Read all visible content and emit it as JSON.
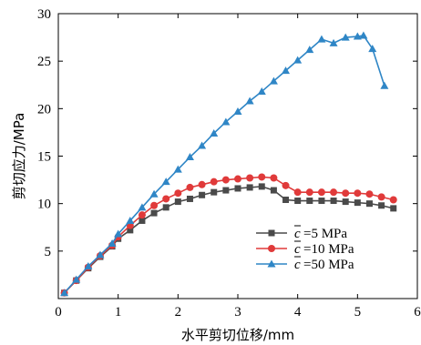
{
  "chart_data": {
    "type": "line",
    "xlabel": "水平剪切位移/mm",
    "ylabel": "剪切应力/MPa",
    "xlim": [
      0,
      6
    ],
    "ylim": [
      0,
      30
    ],
    "xticks": [
      0,
      1,
      2,
      3,
      4,
      5,
      6
    ],
    "yticks": [
      5,
      10,
      15,
      20,
      25,
      30
    ],
    "grid": false,
    "legend": "lower-right",
    "series": [
      {
        "name": "=5 MPa",
        "symbol": "c",
        "color": "#4a4a4a",
        "marker": "square",
        "x": [
          0.1,
          0.3,
          0.5,
          0.7,
          0.9,
          1.0,
          1.2,
          1.4,
          1.6,
          1.8,
          2.0,
          2.2,
          2.4,
          2.6,
          2.8,
          3.0,
          3.2,
          3.4,
          3.6,
          3.8,
          4.0,
          4.2,
          4.4,
          4.6,
          4.8,
          5.0,
          5.2,
          5.4,
          5.6
        ],
        "y": [
          0.6,
          1.9,
          3.2,
          4.4,
          5.5,
          6.3,
          7.2,
          8.2,
          9.0,
          9.6,
          10.2,
          10.5,
          10.9,
          11.2,
          11.4,
          11.6,
          11.7,
          11.8,
          11.4,
          10.4,
          10.3,
          10.3,
          10.3,
          10.3,
          10.2,
          10.1,
          10.0,
          9.8,
          9.5
        ]
      },
      {
        "name": "=10 MPa",
        "symbol": "c",
        "color": "#e03a3a",
        "marker": "circle",
        "x": [
          0.1,
          0.3,
          0.5,
          0.7,
          0.9,
          1.0,
          1.2,
          1.4,
          1.6,
          1.8,
          2.0,
          2.2,
          2.4,
          2.6,
          2.8,
          3.0,
          3.2,
          3.4,
          3.6,
          3.8,
          4.0,
          4.2,
          4.4,
          4.6,
          4.8,
          5.0,
          5.2,
          5.4,
          5.6
        ],
        "y": [
          0.6,
          1.9,
          3.3,
          4.5,
          5.6,
          6.5,
          7.7,
          8.8,
          9.8,
          10.5,
          11.1,
          11.7,
          12.0,
          12.3,
          12.5,
          12.6,
          12.7,
          12.8,
          12.7,
          11.9,
          11.2,
          11.2,
          11.2,
          11.2,
          11.1,
          11.1,
          11.0,
          10.7,
          10.4
        ]
      },
      {
        "name": "=50 MPa",
        "symbol": "c",
        "color": "#2f86c6",
        "marker": "triangle",
        "x": [
          0.1,
          0.3,
          0.5,
          0.7,
          0.9,
          1.0,
          1.2,
          1.4,
          1.6,
          1.8,
          2.0,
          2.2,
          2.4,
          2.6,
          2.8,
          3.0,
          3.2,
          3.4,
          3.6,
          3.8,
          4.0,
          4.2,
          4.4,
          4.6,
          4.8,
          5.0,
          5.1,
          5.25,
          5.45
        ],
        "y": [
          0.6,
          2.0,
          3.4,
          4.6,
          5.8,
          6.8,
          8.2,
          9.6,
          11.0,
          12.3,
          13.6,
          14.9,
          16.1,
          17.4,
          18.6,
          19.7,
          20.8,
          21.8,
          22.9,
          24.0,
          25.1,
          26.2,
          27.3,
          26.9,
          27.5,
          27.6,
          27.7,
          26.3,
          22.4
        ]
      }
    ]
  }
}
